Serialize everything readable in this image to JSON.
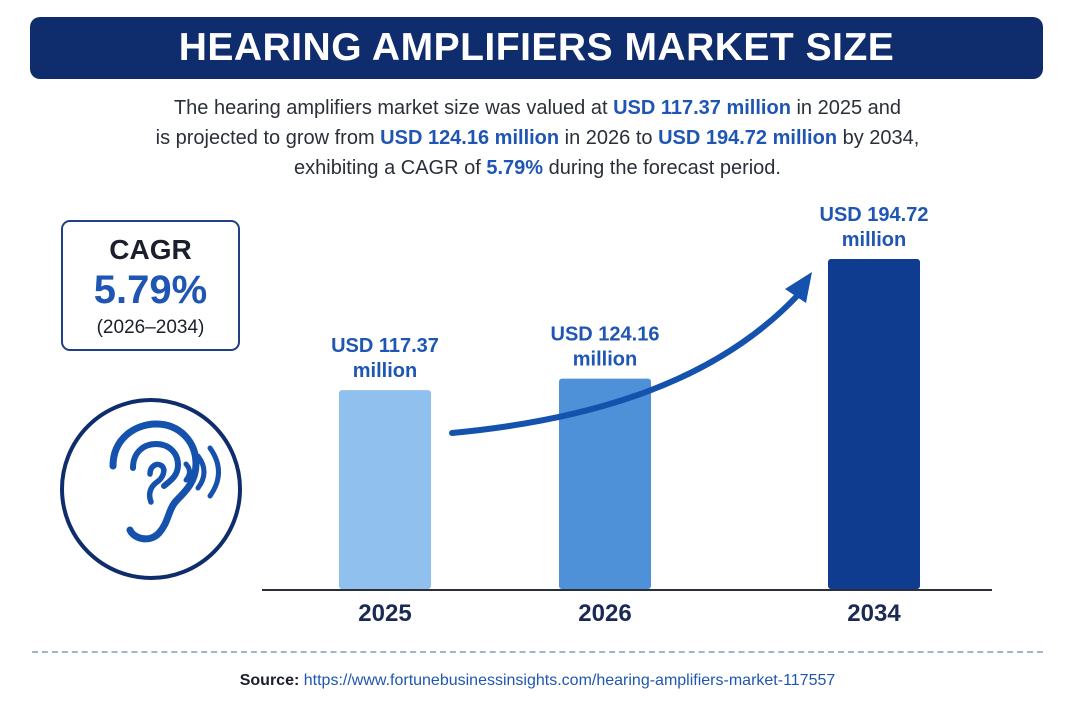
{
  "title": "HEARING AMPLIFIERS MARKET SIZE",
  "summary": {
    "l1a": "The hearing amplifiers market size was valued at ",
    "l1b": "USD 117.37 million",
    "l1c": " in 2025 and",
    "l2a": "is projected to grow from ",
    "l2b": "USD 124.16 million",
    "l2c": " in 2026 to ",
    "l2d": "USD 194.72 million",
    "l2e": " by 2034,",
    "l3a": "exhibiting a CAGR of ",
    "l3b": "5.79%",
    "l3c": " during the forecast period."
  },
  "cagr": {
    "label": "CAGR",
    "value": "5.79%",
    "period": "(2026–2034)"
  },
  "icons": {
    "ear": "ear-sound-icon",
    "trend": "growth-arrow-icon"
  },
  "colors": {
    "banner": "#0f2d6d",
    "accent": "#1f56b3",
    "bar_2025": "#90c1ee",
    "bar_2026": "#4f91d9",
    "bar_2034": "#0f3c8f",
    "arrow": "#1552ad"
  },
  "chart_data": {
    "type": "bar",
    "categories": [
      "2025",
      "2026",
      "2034"
    ],
    "values": [
      117.37,
      124.16,
      194.72
    ],
    "data_labels": [
      [
        "USD 117.37",
        "million"
      ],
      [
        "USD 124.16",
        "million"
      ],
      [
        "USD 194.72",
        "million"
      ]
    ],
    "bar_colors": [
      "#90c1ee",
      "#4f91d9",
      "#0f3c8f"
    ],
    "title": "",
    "xlabel": "",
    "ylabel": "",
    "grid": false,
    "legend": "none"
  },
  "source": {
    "label": "Source:",
    "url": "https://www.fortunebusinessinsights.com/hearing-amplifiers-market-117557"
  }
}
